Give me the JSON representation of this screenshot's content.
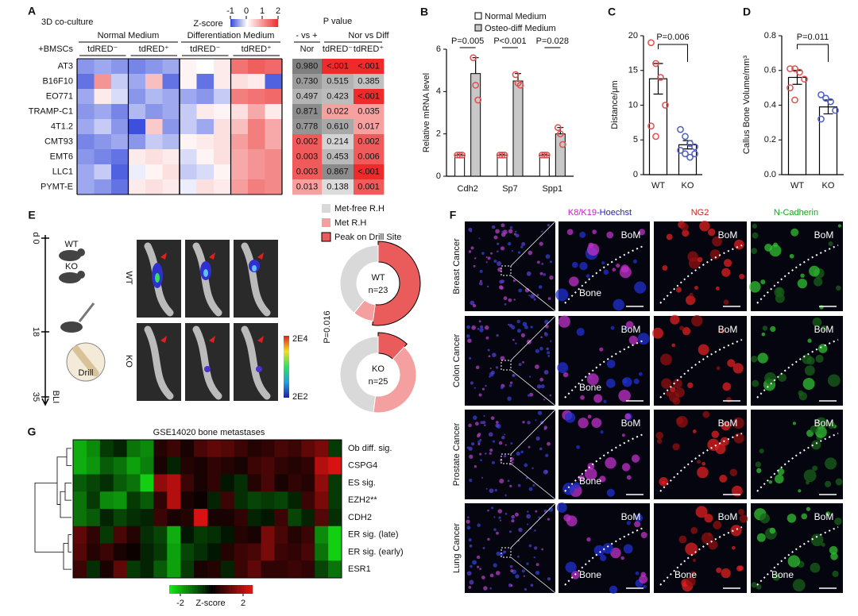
{
  "panels": {
    "A": {
      "label": "A",
      "title": "3D co-culture",
      "colorbar": {
        "title": "Z-score",
        "lim": [
          -1,
          2
        ],
        "ticks": [
          -1,
          0,
          1,
          2
        ]
      },
      "row_header": "+BMSCs",
      "groups": [
        "Normal Medium",
        "Differentiation Medium"
      ],
      "columns": [
        "tdRED⁻",
        "tdRED⁺",
        "tdRED⁻",
        "tdRED⁺"
      ],
      "rows": [
        "AT3",
        "B16F10",
        "EO771",
        "TRAMP-C1",
        "4T1.2",
        "CMT93",
        "EMT6",
        "LLC1",
        "PYMT-E"
      ],
      "values": [
        [
          -0.6,
          -0.5,
          -0.6,
          -0.7,
          -0.6,
          -0.5,
          0.1,
          0,
          0.2,
          1.3,
          1.5,
          1.4
        ],
        [
          -0.8,
          1.0,
          -0.3,
          -0.5,
          0.6,
          -0.8,
          0.1,
          -0.8,
          0.2,
          0.3,
          0.2,
          -0.9
        ],
        [
          -0.5,
          0.2,
          -0.2,
          -0.6,
          -0.4,
          -0.5,
          -0.5,
          -0.6,
          -0.3,
          1.2,
          1.3,
          1.4
        ],
        [
          -0.6,
          -0.5,
          -0.7,
          -0.4,
          -0.6,
          -0.5,
          -0.3,
          0.2,
          0.1,
          0.3,
          0.8,
          0.2
        ],
        [
          -0.5,
          -0.3,
          -0.6,
          -1.0,
          0.5,
          -0.6,
          -0.3,
          -0.5,
          0.3,
          0.6,
          1.2,
          0.8
        ],
        [
          -0.7,
          -0.6,
          -0.5,
          -0.6,
          -0.3,
          -0.4,
          0.1,
          0.2,
          0.3,
          0.9,
          1.2,
          0.8
        ],
        [
          -0.6,
          -0.7,
          -0.8,
          0.2,
          0.3,
          0.2,
          -0.2,
          0.1,
          0.3,
          0.8,
          1.0,
          1.1
        ],
        [
          -0.5,
          -0.3,
          -0.9,
          -0.1,
          0.1,
          0.3,
          -0.3,
          -0.2,
          0.1,
          0.8,
          1.0,
          1.1
        ],
        [
          -0.5,
          -0.6,
          -0.8,
          0.2,
          0.3,
          0.2,
          -0.1,
          0.3,
          0.2,
          0.9,
          1.2,
          1.1
        ]
      ],
      "pvalue": {
        "title": "P value",
        "headers": [
          "- vs +",
          "Nor vs Diff"
        ],
        "subheaders": [
          "Nor",
          "tdRED⁻",
          "tdRED⁺"
        ],
        "rows": [
          [
            "0.980",
            "<.001",
            "<.001"
          ],
          [
            "0.730",
            "0.515",
            "0.385"
          ],
          [
            "0.497",
            "0.423",
            "<.001"
          ],
          [
            "0.871",
            "0.022",
            "0.035"
          ],
          [
            "0.778",
            "0.610",
            "0.017"
          ],
          [
            "0.002",
            "0.214",
            "0.002"
          ],
          [
            "0.003",
            "0.453",
            "0.006"
          ],
          [
            "0.003",
            "0.867",
            "<.001"
          ],
          [
            "0.013",
            "0.138",
            "0.001"
          ]
        ]
      }
    },
    "B": {
      "label": "B",
      "type": "bar",
      "ylabel": "Relative mRNA level",
      "categories": [
        "Cdh2",
        "Sp7",
        "Spp1"
      ],
      "series": [
        {
          "name": "Normal Medium",
          "color": "#ffffff",
          "values": [
            1,
            1,
            1
          ],
          "errors": [
            0.02,
            0.02,
            0.02
          ],
          "points": [
            [
              1,
              1,
              1
            ],
            [
              1,
              1,
              1
            ],
            [
              1,
              1,
              1
            ]
          ]
        },
        {
          "name": "Osteo-diff Medium",
          "color": "#c8c8c8",
          "values": [
            4.85,
            4.5,
            2.0
          ],
          "errors": [
            0.75,
            0.35,
            0.3
          ],
          "points": [
            [
              5.6,
              4.3,
              3.6
            ],
            [
              4.8,
              4.4,
              4.3
            ],
            [
              2.3,
              2.0,
              1.5
            ]
          ]
        }
      ],
      "point_color": "#e05050",
      "ylim": [
        0,
        6
      ],
      "yticks": [
        0,
        2,
        4,
        6
      ],
      "annotations": [
        "P=0.005",
        "P<0.001",
        "P=0.028"
      ]
    },
    "C": {
      "label": "C",
      "type": "bar",
      "ylabel": "Distance/μm",
      "categories": [
        "WT",
        "KO"
      ],
      "values": [
        13.8,
        4.3
      ],
      "errors": [
        2.2,
        0.6
      ],
      "points": [
        [
          19,
          16,
          14,
          10,
          7,
          5.5
        ],
        [
          6.5,
          5.5,
          4.5,
          4,
          3.5,
          3,
          2.5,
          3
        ]
      ],
      "point_colors": [
        "#e05050",
        "#5060c0"
      ],
      "ylim": [
        0,
        20
      ],
      "yticks": [
        0,
        5,
        10,
        15,
        20
      ],
      "annotation": "P=0.006"
    },
    "D": {
      "label": "D",
      "type": "bar",
      "ylabel": "Callus Bone Volume/mm³",
      "categories": [
        "WT",
        "KO"
      ],
      "values": [
        0.56,
        0.39
      ],
      "errors": [
        0.04,
        0.04
      ],
      "points": [
        [
          0.61,
          0.61,
          0.59,
          0.55,
          0.5,
          0.43
        ],
        [
          0.46,
          0.44,
          0.42,
          0.37,
          0.32
        ]
      ],
      "point_colors": [
        "#e05050",
        "#5060c0"
      ],
      "ylim": [
        0,
        0.8
      ],
      "yticks": [
        {
          "value": 0,
          "label": "0.0"
        },
        0.2,
        0.4,
        0.6,
        0.8
      ],
      "annotation": "P=0.011"
    },
    "E": {
      "label": "E",
      "timeline": [
        "d 0",
        "18",
        "35"
      ],
      "mice": [
        "WT",
        "KO"
      ],
      "drill": "Drill",
      "bli": "BLI",
      "rows": [
        "WT",
        "KO"
      ],
      "colorbar": [
        "2E4",
        "2E2"
      ],
      "pvalue": "P=0.016",
      "legend": [
        "Met-free R.H",
        "Met R.H",
        "Peak on Drill Site"
      ],
      "colors": [
        "#d9d9d9",
        "#f4a0a0",
        "#ea5b5b"
      ],
      "donuts": [
        {
          "group": "WT",
          "n": "n=23",
          "values": [
            9,
            2,
            12
          ]
        },
        {
          "group": "KO",
          "n": "n=25",
          "values": [
            12,
            10,
            3
          ]
        }
      ]
    },
    "F": {
      "label": "F",
      "stains": [
        "K8/K19",
        "-Hoechst",
        "NG2",
        "N-Cadherin"
      ],
      "rows": [
        "Breast Cancer",
        "Colon Cancer",
        "Prostate Cancer",
        "Lung Cancer"
      ],
      "image_labels": [
        [
          [
            "BoM",
            "Bone"
          ],
          [
            "BoM"
          ],
          [
            "BoM"
          ]
        ],
        [
          [
            "BoM",
            "Bone"
          ],
          [
            "BoM"
          ],
          [
            "BoM"
          ]
        ],
        [
          [
            "BoM",
            "Bone"
          ],
          [
            "BoM"
          ],
          [
            "BoM"
          ]
        ],
        [
          [
            "BoM",
            "Bone"
          ],
          [
            "BoM",
            "Bone"
          ],
          [
            "BoM",
            "Bone"
          ]
        ]
      ]
    },
    "G": {
      "label": "G",
      "title": "GSE14020 bone metastases",
      "rows": [
        "Ob diff. sig.",
        "CSPG4",
        "ES sig.",
        "EZH2**",
        "CDH2",
        "ER sig. (late)",
        "ER sig. (early)",
        "ESR1"
      ],
      "values": [
        [
          -1.5,
          -1.2,
          -0.5,
          -0.3,
          -1.0,
          -1.2,
          0.3,
          0.5,
          0.2,
          0.6,
          0.8,
          0.7,
          0.5,
          0.3,
          0.4,
          0.6,
          0.5,
          0.8,
          1.0,
          -0.5
        ],
        [
          -1.5,
          -1.3,
          -0.8,
          -1.0,
          -1.4,
          -1.1,
          0.2,
          -0.3,
          0.3,
          0.2,
          0.4,
          0.3,
          0.2,
          0.5,
          0.6,
          0.4,
          0.3,
          0.4,
          1.5,
          1.8
        ],
        [
          -0.8,
          -0.6,
          -0.4,
          -0.8,
          -1.0,
          -1.8,
          1.2,
          1.5,
          0.5,
          0.2,
          0.4,
          -0.2,
          -0.4,
          0.3,
          0.6,
          0.2,
          0.4,
          0.3,
          1.2,
          -0.5
        ],
        [
          -1.0,
          -0.5,
          -1.2,
          -1.3,
          -0.5,
          -0.8,
          0.4,
          1.5,
          0.2,
          0.1,
          -0.3,
          0.5,
          -0.4,
          -0.6,
          -0.5,
          -0.6,
          -0.3,
          0.5,
          1.0,
          -0.5
        ],
        [
          -1.0,
          -0.8,
          -0.3,
          -0.6,
          -0.4,
          -0.3,
          0.5,
          0.2,
          0.3,
          1.8,
          0.2,
          0.2,
          0.4,
          -0.3,
          -0.2,
          0.5,
          -0.6,
          -0.3,
          0.7,
          -0.4
        ],
        [
          0.8,
          0.4,
          -0.5,
          0.6,
          0.3,
          -0.4,
          -0.6,
          -1.5,
          -0.2,
          -0.5,
          -0.4,
          -0.2,
          0.3,
          0.2,
          1.0,
          0.6,
          0.3,
          0.5,
          -1.2,
          -1.8
        ],
        [
          0.7,
          0.3,
          0.5,
          0.2,
          0.1,
          -0.3,
          -0.5,
          -1.4,
          -0.6,
          -0.4,
          -0.2,
          0.3,
          0.5,
          0.6,
          1.0,
          0.5,
          0.4,
          0.6,
          -1.0,
          -1.8
        ],
        [
          0.5,
          -0.4,
          0.2,
          0.8,
          -0.5,
          -0.3,
          -0.8,
          -1.4,
          -0.5,
          0.2,
          0.3,
          -0.3,
          0.5,
          0.8,
          0.4,
          0.4,
          0.5,
          0.4,
          -0.6,
          -1.0
        ]
      ],
      "colorbar": {
        "title": "Z-score",
        "lim": [
          -2,
          2
        ],
        "ticks": [
          -2,
          2
        ]
      }
    }
  }
}
